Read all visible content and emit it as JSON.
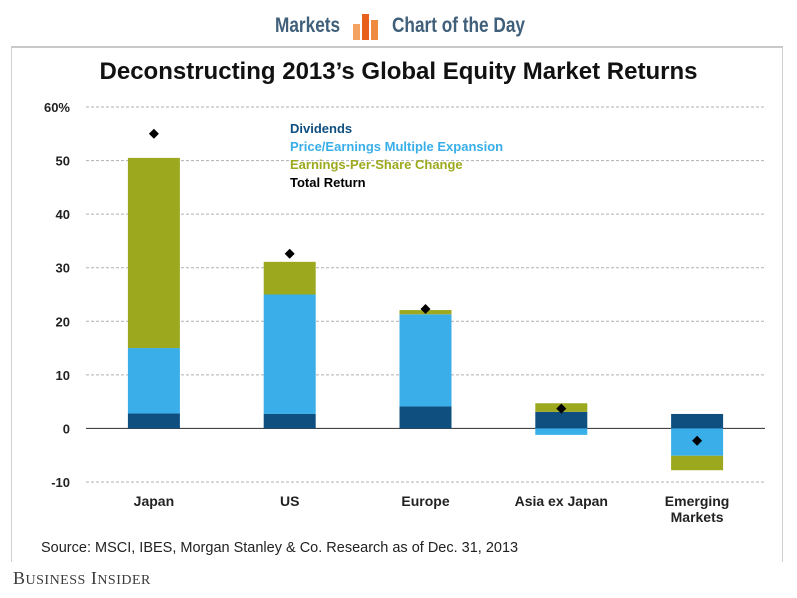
{
  "header": {
    "section": "Markets",
    "feature": "Chart of the Day"
  },
  "source": "Source: MSCI, IBES, Morgan Stanley & Co. Research as of Dec. 31, 2013",
  "brand": "Business Insider",
  "colors": {
    "dividends": "#0f4f7f",
    "pe_expansion": "#39aee8",
    "eps_change": "#9ca91e",
    "total_return": "#000000",
    "gridline": "#b0b0b0",
    "header_text": "#3f5f7a",
    "logo_orange": "#f07a2a"
  },
  "chart_data": {
    "type": "bar",
    "stacked": true,
    "title": "Deconstructing 2013’s Global Equity Market Returns",
    "xlabel": "",
    "ylabel": "",
    "ylim": [
      -10,
      60
    ],
    "yticks": [
      -10,
      0,
      10,
      20,
      30,
      40,
      50,
      60
    ],
    "ytick_labels": [
      "-10",
      "0",
      "10",
      "20",
      "30",
      "40",
      "50",
      "60%"
    ],
    "grid": true,
    "legend_position": "top-center",
    "categories": [
      "Japan",
      "US",
      "Europe",
      "Asia ex Japan",
      "Emerging Markets"
    ],
    "category_lines": [
      [
        "Japan"
      ],
      [
        "US"
      ],
      [
        "Europe"
      ],
      [
        "Asia ex Japan"
      ],
      [
        "Emerging",
        "Markets"
      ]
    ],
    "series": [
      {
        "name": "Dividends",
        "values": [
          2.8,
          2.7,
          4.1,
          3.1,
          2.7
        ]
      },
      {
        "name": "Price/Earnings Multiple Expansion",
        "values": [
          12.2,
          22.3,
          17.2,
          -1.2,
          -5.1
        ]
      },
      {
        "name": "Earnings-Per-Share Change",
        "values": [
          35.5,
          6.1,
          0.8,
          1.6,
          -2.7
        ]
      }
    ],
    "markers": {
      "name": "Total Return",
      "values": [
        55.0,
        32.6,
        22.3,
        3.7,
        -2.3
      ]
    }
  }
}
